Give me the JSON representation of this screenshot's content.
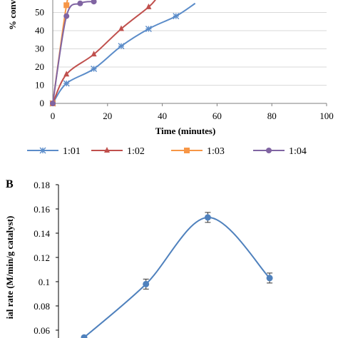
{
  "chart_data": [
    {
      "panel": "",
      "type": "line",
      "xlabel": "Time (minutes)",
      "ylabel": "% conve",
      "xlim": [
        0,
        100
      ],
      "ylim": [
        0,
        60
      ],
      "x_ticks": [
        "0",
        "20",
        "40",
        "60",
        "80",
        "100"
      ],
      "y_ticks": [
        "0",
        "10",
        "20",
        "30",
        "40",
        "50"
      ],
      "grid": "horizontal",
      "legend": "bottom",
      "series": [
        {
          "name": "1:01",
          "color": "#5b8cc9",
          "marker": "star",
          "x": [
            0,
            5,
            15,
            25,
            35,
            45,
            52
          ],
          "y": [
            0,
            11,
            19,
            31.5,
            41,
            48,
            55
          ]
        },
        {
          "name": "1:02",
          "color": "#c0504d",
          "marker": "triangle",
          "x": [
            0,
            5,
            15,
            25,
            35,
            38
          ],
          "y": [
            0,
            16,
            27,
            41,
            53,
            58
          ]
        },
        {
          "name": "1:03",
          "color": "#f79646",
          "marker": "square",
          "x": [
            0,
            5,
            7
          ],
          "y": [
            0,
            54,
            62
          ]
        },
        {
          "name": "1:04",
          "color": "#8064a2",
          "marker": "circle",
          "x": [
            0,
            5,
            10,
            15
          ],
          "y": [
            0,
            48,
            55,
            56
          ]
        }
      ]
    },
    {
      "panel": "B",
      "type": "line",
      "xlabel": "",
      "ylabel": "ial rate (M/min/g catalyst)",
      "ylim": [
        0.05,
        0.18
      ],
      "y_ticks": [
        "0.06",
        "0.08",
        "0.1",
        "0.12",
        "0.14",
        "0.16",
        "0.18"
      ],
      "color": "#4f81bd",
      "series": [
        {
          "name": "",
          "x": [
            1,
            2,
            3,
            4
          ],
          "y": [
            0.054,
            0.098,
            0.153,
            0.103
          ]
        }
      ]
    }
  ]
}
